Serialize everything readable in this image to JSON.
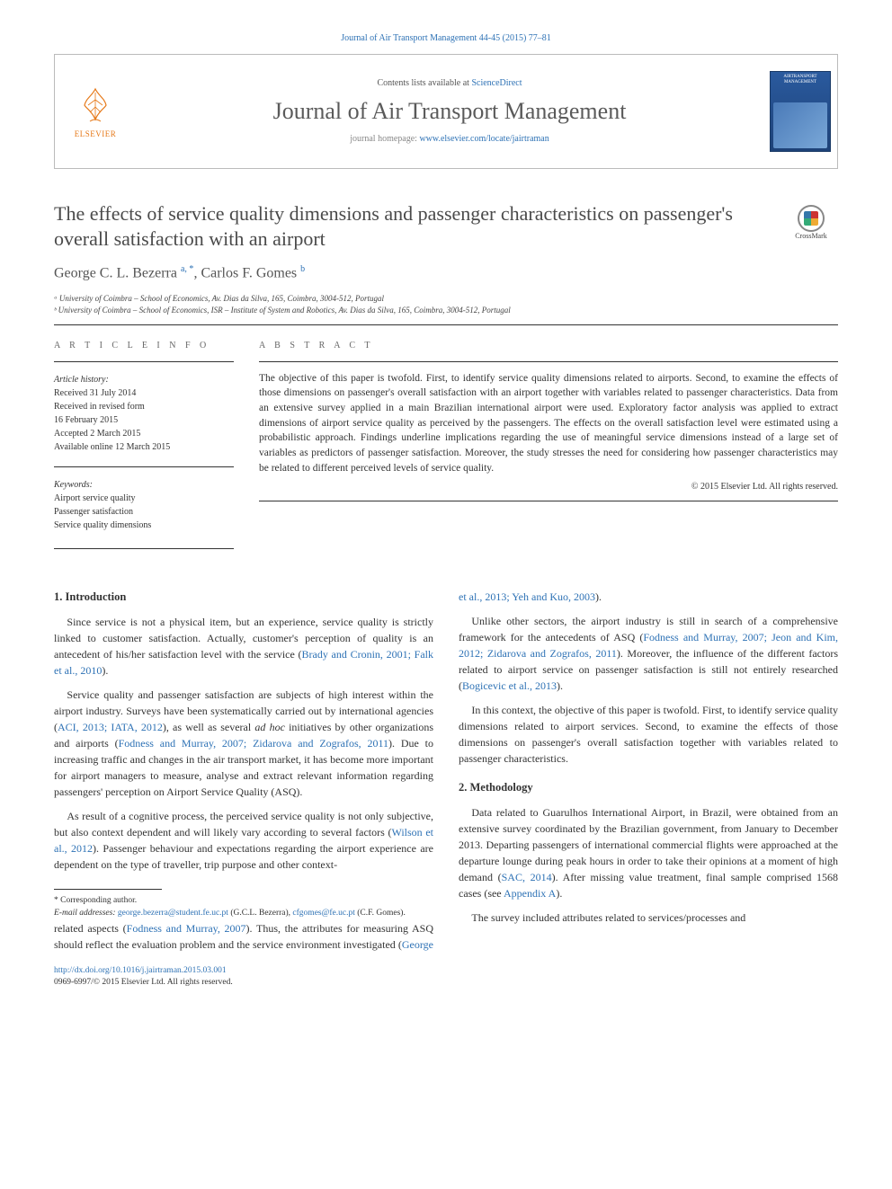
{
  "top_ref": "Journal of Air Transport Management 44-45 (2015) 77–81",
  "masthead": {
    "publisher": "ELSEVIER",
    "contents_prefix": "Contents lists available at ",
    "contents_link": "ScienceDirect",
    "journal": "Journal of Air Transport Management",
    "homepage_prefix": "journal homepage: ",
    "homepage_url": "www.elsevier.com/locate/jairtraman",
    "cover_text": "AIRTRANSPORT MANAGEMENT"
  },
  "title": "The effects of service quality dimensions and passenger characteristics on passenger's overall satisfaction with an airport",
  "crossmark": "CrossMark",
  "authors_html": "George C. L. Bezerra <sup>a, *</sup>, Carlos F. Gomes <sup>b</sup>",
  "affiliations": [
    "ᵃ University of Coimbra – School of Economics, Av. Dias da Silva, 165, Coimbra, 3004-512, Portugal",
    "ᵇ University of Coimbra – School of Economics, ISR – Institute of System and Robotics, Av. Dias da Silva, 165, Coimbra, 3004-512, Portugal"
  ],
  "article_info": {
    "header": "A R T I C L E   I N F O",
    "history_head": "Article history:",
    "history": [
      "Received 31 July 2014",
      "Received in revised form",
      "16 February 2015",
      "Accepted 2 March 2015",
      "Available online 12 March 2015"
    ],
    "keywords_head": "Keywords:",
    "keywords": [
      "Airport service quality",
      "Passenger satisfaction",
      "Service quality dimensions"
    ]
  },
  "abstract": {
    "header": "A B S T R A C T",
    "text": "The objective of this paper is twofold. First, to identify service quality dimensions related to airports. Second, to examine the effects of those dimensions on passenger's overall satisfaction with an airport together with variables related to passenger characteristics. Data from an extensive survey applied in a main Brazilian international airport were used. Exploratory factor analysis was applied to extract dimensions of airport service quality as perceived by the passengers. The effects on the overall satisfaction level were estimated using a probabilistic approach. Findings underline implications regarding the use of meaningful service dimensions instead of a large set of variables as predictors of passenger satisfaction. Moreover, the study stresses the need for considering how passenger characteristics may be related to different perceived levels of service quality.",
    "copyright": "© 2015 Elsevier Ltd. All rights reserved."
  },
  "sections": {
    "s1_head": "1.  Introduction",
    "s1_p1_a": "Since service is not a physical item, but an experience, service quality is strictly linked to customer satisfaction. Actually, customer's perception of quality is an antecedent of his/her satisfaction level with the service (",
    "s1_p1_link": "Brady and Cronin, 2001; Falk et al., 2010",
    "s1_p1_b": ").",
    "s1_p2_a": "Service quality and passenger satisfaction are subjects of high interest within the airport industry. Surveys have been systematically carried out by international agencies (",
    "s1_p2_link1": "ACI, 2013; IATA, 2012",
    "s1_p2_b": "), as well as several ",
    "s1_p2_em": "ad hoc",
    "s1_p2_c": " initiatives by other organizations and airports (",
    "s1_p2_link2": "Fodness and Murray, 2007; Zidarova and Zografos, 2011",
    "s1_p2_d": "). Due to increasing traffic and changes in the air transport market, it has become more important for airport managers to measure, analyse and extract relevant information regarding passengers' perception on Airport Service Quality (ASQ).",
    "s1_p3_a": "As result of a cognitive process, the perceived service quality is not only subjective, but also context dependent and will likely vary according to several factors (",
    "s1_p3_link": "Wilson et al., 2012",
    "s1_p3_b": "). Passenger behaviour and expectations regarding the airport experience are dependent on the type of traveller, trip purpose and other context-",
    "s1_p3cont_a": "related aspects (",
    "s1_p3cont_link1": "Fodness and Murray, 2007",
    "s1_p3cont_b": "). Thus, the attributes for measuring ASQ should reflect the evaluation problem and the service environment investigated (",
    "s1_p3cont_link2": "George et al., 2013; Yeh and Kuo, 2003",
    "s1_p3cont_c": ").",
    "s1_p4_a": "Unlike other sectors, the airport industry is still in search of a comprehensive framework for the antecedents of ASQ (",
    "s1_p4_link1": "Fodness and Murray, 2007; Jeon and Kim, 2012; Zidarova and Zografos, 2011",
    "s1_p4_b": "). Moreover, the influence of the different factors related to airport service on passenger satisfaction is still not entirely researched (",
    "s1_p4_link2": "Bogicevic et al., 2013",
    "s1_p4_c": ").",
    "s1_p5": "In this context, the objective of this paper is twofold. First, to identify service quality dimensions related to airport services. Second, to examine the effects of those dimensions on passenger's overall satisfaction together with variables related to passenger characteristics.",
    "s2_head": "2.  Methodology",
    "s2_p1_a": "Data related to Guarulhos International Airport, in Brazil, were obtained from an extensive survey coordinated by the Brazilian government, from January to December 2013. Departing passengers of international commercial flights were approached at the departure lounge during peak hours in order to take their opinions at a moment of high demand (",
    "s2_p1_link": "SAC, 2014",
    "s2_p1_b": "). After missing value treatment, final sample comprised 1568 cases (see ",
    "s2_p1_link2": "Appendix A",
    "s2_p1_c": ").",
    "s2_p2": "The survey included attributes related to services/processes and"
  },
  "footnotes": {
    "corr": "* Corresponding author.",
    "email_label": "E-mail addresses: ",
    "email1": "george.bezerra@student.fe.uc.pt",
    "email1_who": " (G.C.L. Bezerra), ",
    "email2": "cfgomes@fe.uc.pt",
    "email2_who": " (C.F. Gomes)."
  },
  "footer": {
    "doi": "http://dx.doi.org/10.1016/j.jairtraman.2015.03.001",
    "issn_line": "0969-6997/© 2015 Elsevier Ltd. All rights reserved."
  }
}
